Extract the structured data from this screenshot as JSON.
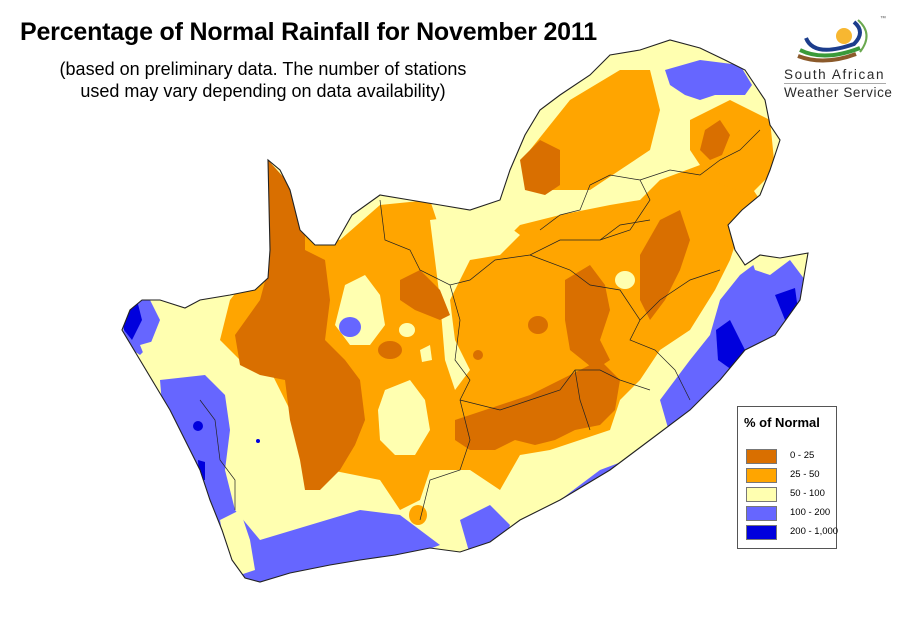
{
  "title": "Percentage of Normal Rainfall for November 2011",
  "subtitle_line1": "(based on preliminary data. The number of stations",
  "subtitle_line2": "used may vary depending on data availability)",
  "logo": {
    "line1": "South African",
    "line2": "Weather Service",
    "trademark": "™"
  },
  "legend": {
    "title": "% of Normal",
    "items": [
      {
        "label": "0 - 25",
        "color": "#D96F00"
      },
      {
        "label": "25 - 50",
        "color": "#FFA500"
      },
      {
        "label": "50 - 100",
        "color": "#FFFFB0"
      },
      {
        "label": "100 - 200",
        "color": "#6666FF"
      },
      {
        "label": "200 - 1,000",
        "color": "#0000DD"
      }
    ]
  },
  "map": {
    "region": "South Africa",
    "variable": "Percentage of normal rainfall",
    "period": "November 2011"
  }
}
